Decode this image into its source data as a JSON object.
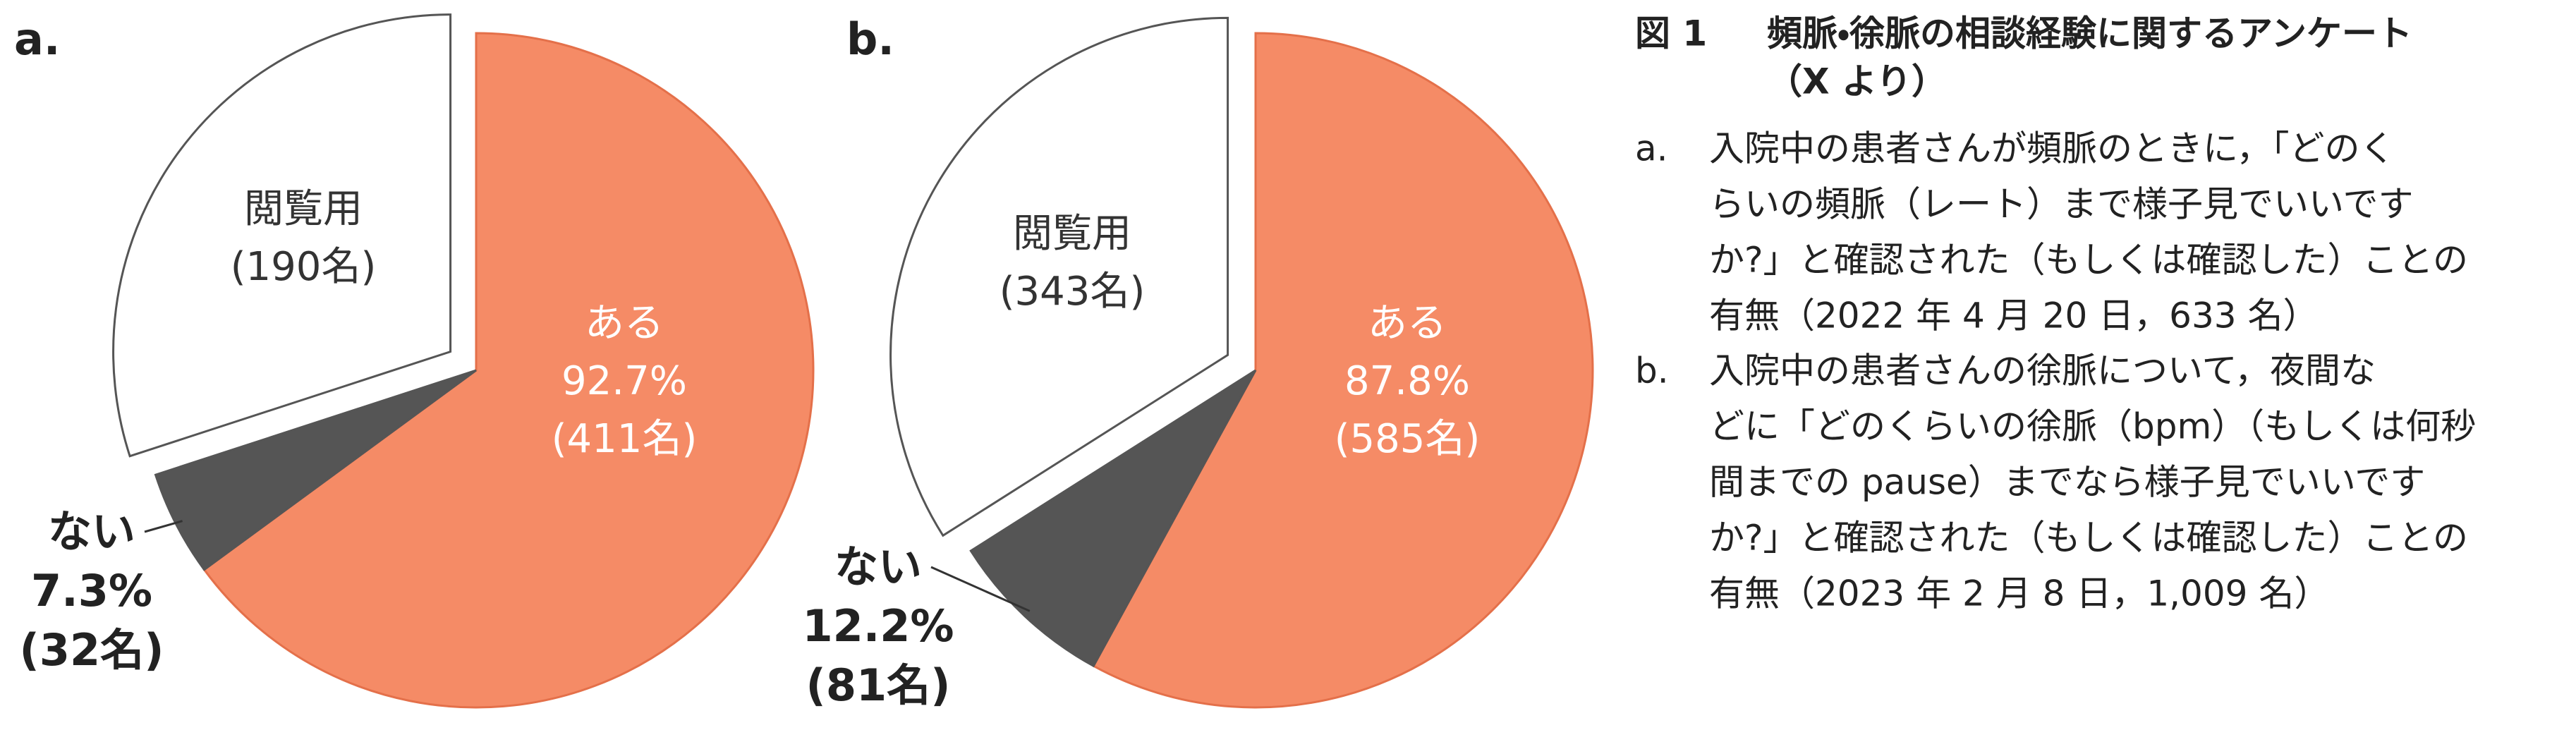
{
  "chart_data": [
    {
      "type": "pie",
      "label": "a.",
      "categories": [
        "ある",
        "ない",
        "閲覧用"
      ],
      "values": [
        411,
        32,
        190
      ],
      "value_labels": [
        "(411名)",
        "(32名)",
        "(190名)"
      ],
      "percent_labels": [
        "92.7%",
        "7.3%",
        null
      ],
      "colors": [
        "#f58b66",
        "#555555",
        "#ffffff"
      ],
      "exploded": [
        false,
        false,
        true
      ]
    },
    {
      "type": "pie",
      "label": "b.",
      "categories": [
        "ある",
        "ない",
        "閲覧用"
      ],
      "values": [
        585,
        81,
        343
      ],
      "value_labels": [
        "(585名)",
        "(81名)",
        "(343名)"
      ],
      "percent_labels": [
        "87.8%",
        "12.2%",
        null
      ],
      "colors": [
        "#f58b66",
        "#555555",
        "#ffffff"
      ],
      "exploded": [
        false,
        false,
        true
      ]
    }
  ],
  "caption": {
    "figure_label": "図 1",
    "title_lines": [
      "頻脈・徐脈の相談経験に関するアンケート",
      "（X より）"
    ],
    "items": [
      {
        "marker": "a.",
        "lines": [
          "入院中の患者さんが頻脈のときに，「どのく",
          "らいの頻脈（レート）まで様子見でいいです",
          "か?」と確認された（もしくは確認した）ことの",
          "有無（2022 年 4 月 20 日，633 名）"
        ]
      },
      {
        "marker": "b.",
        "lines": [
          "入院中の患者さんの徐脈について，夜間な",
          "どに「どのくらいの徐脈（bpm）（もしくは何秒",
          "間までの pause）までなら様子見でいいです",
          "か?」と確認された（もしくは確認した）ことの",
          "有無（2023 年 2 月 8 日，1,009 名）"
        ]
      }
    ]
  }
}
